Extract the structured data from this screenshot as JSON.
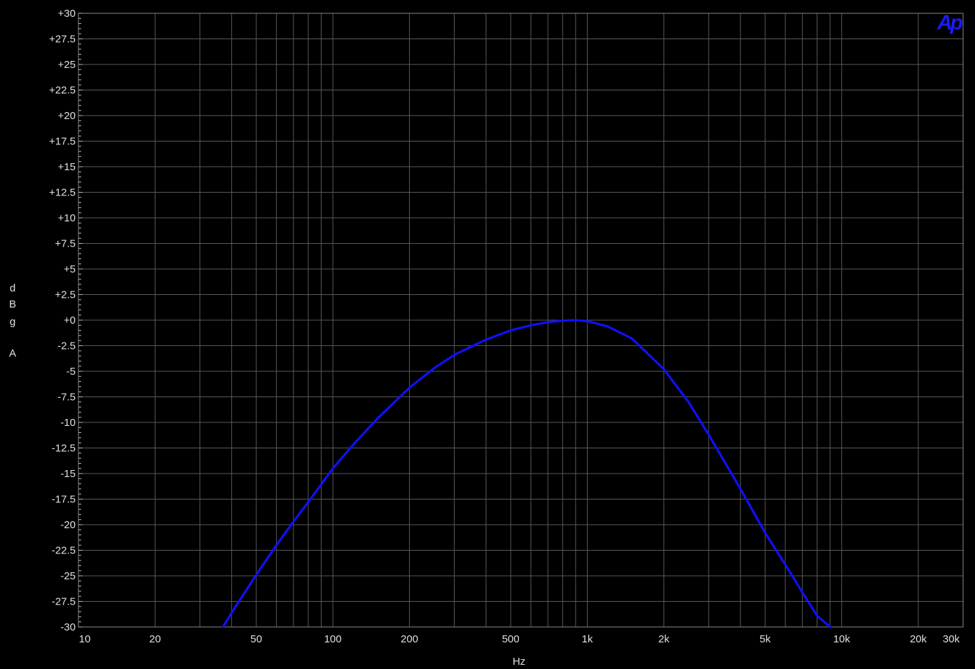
{
  "colors": {
    "background": "#000000",
    "grid": "#5a5a5a",
    "axis_text": "#e0e0e0",
    "trace": "#1010ff",
    "logo": "#1a1aff"
  },
  "logo_text": "Ap",
  "chart_data": {
    "type": "line",
    "title": "",
    "xlabel": "Hz",
    "ylabel": "dBg A",
    "ylabel_chars": [
      "d",
      "B",
      "g",
      "",
      "A"
    ],
    "x_scale": "log",
    "xlim": [
      10,
      30000
    ],
    "ylim": [
      -30,
      30
    ],
    "grid": true,
    "x_tick_values": [
      10,
      20,
      50,
      100,
      200,
      500,
      1000,
      2000,
      5000,
      10000,
      20000,
      30000
    ],
    "x_tick_labels": [
      "10",
      "20",
      "50",
      "100",
      "200",
      "500",
      "1k",
      "2k",
      "5k",
      "10k",
      "20k",
      "30k"
    ],
    "y_tick_values": [
      30,
      27.5,
      25,
      22.5,
      20,
      17.5,
      15,
      12.5,
      10,
      7.5,
      5,
      2.5,
      0,
      -2.5,
      -5,
      -7.5,
      -10,
      -12.5,
      -15,
      -17.5,
      -20,
      -22.5,
      -25,
      -27.5,
      -30
    ],
    "y_tick_labels": [
      "+30",
      "+27.5",
      "+25",
      "+22.5",
      "+20",
      "+17.5",
      "+15",
      "+12.5",
      "+10",
      "+7.5",
      "+5",
      "+2.5",
      "+0",
      "-2.5",
      "-5",
      "-7.5",
      "-10",
      "-12.5",
      "-15",
      "-17.5",
      "-20",
      "-22.5",
      "-25",
      "-27.5",
      "-30"
    ],
    "series": [
      {
        "x": [
          37,
          40,
          50,
          60,
          70,
          80,
          100,
          120,
          150,
          200,
          250,
          300,
          400,
          500,
          600,
          700,
          800,
          900,
          1000,
          1200,
          1500,
          2000,
          2500,
          3000,
          4000,
          5000,
          6000,
          7000,
          8000,
          9000
        ],
        "y": [
          -30,
          -28.6,
          -24.9,
          -22.0,
          -19.7,
          -17.8,
          -14.5,
          -12.2,
          -9.6,
          -6.6,
          -4.7,
          -3.4,
          -1.9,
          -1.0,
          -0.5,
          -0.2,
          -0.05,
          0,
          -0.1,
          -0.6,
          -1.8,
          -4.8,
          -8.0,
          -11.2,
          -16.5,
          -20.8,
          -23.9,
          -26.6,
          -28.9,
          -30
        ]
      }
    ]
  }
}
